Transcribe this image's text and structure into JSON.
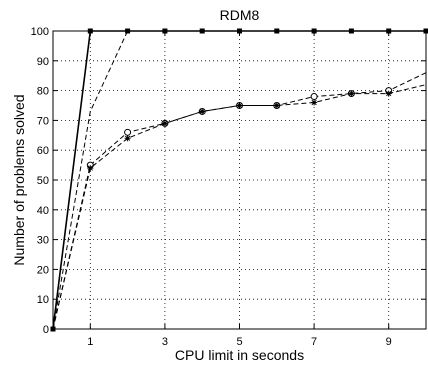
{
  "chart_data": {
    "type": "line",
    "title": "RDM8",
    "xlabel": "CPU limit in seconds",
    "ylabel": "Number of problems solved",
    "xlim": [
      0,
      10
    ],
    "ylim": [
      0,
      100
    ],
    "xticks": [
      1,
      3,
      5,
      7,
      9
    ],
    "yticks": [
      0,
      10,
      20,
      30,
      40,
      50,
      60,
      70,
      80,
      90,
      100
    ],
    "grid": true,
    "series": [
      {
        "line_style": "solid",
        "marker": "square",
        "x": [
          0,
          1,
          2,
          3,
          4,
          5,
          6,
          7,
          8,
          9,
          10
        ],
        "y": [
          0,
          100,
          100,
          100,
          100,
          100,
          100,
          100,
          100,
          100,
          100
        ]
      },
      {
        "line_style": "dashed",
        "marker": "none",
        "x": [
          0,
          1,
          2,
          3,
          4,
          5,
          6,
          7,
          8,
          9,
          10
        ],
        "y": [
          0,
          73,
          100,
          100,
          100,
          100,
          100,
          100,
          100,
          100,
          100
        ]
      },
      {
        "line_style": "dashed",
        "marker": "circle",
        "x": [
          0,
          1,
          2,
          3,
          4,
          5,
          6,
          7,
          8,
          9,
          10
        ],
        "y": [
          0,
          55,
          66,
          69,
          73,
          75,
          75,
          78,
          79,
          80,
          86
        ]
      },
      {
        "line_style": "dashed",
        "marker": "star",
        "x": [
          0,
          1,
          2,
          3,
          4,
          5,
          6,
          7,
          8,
          9,
          10
        ],
        "y": [
          0,
          54,
          64,
          69,
          73,
          75,
          75,
          76,
          79,
          79,
          82
        ]
      }
    ]
  }
}
